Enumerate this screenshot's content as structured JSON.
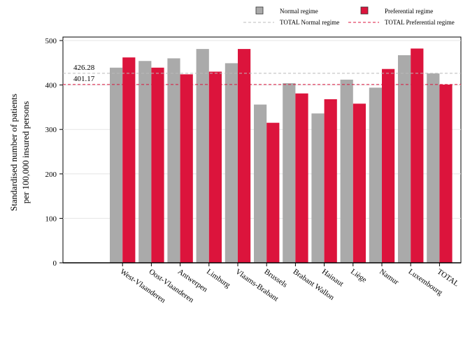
{
  "chart_data": {
    "type": "bar",
    "title": "",
    "xlabel": "",
    "ylabel_lines": [
      "Standardised number of patients",
      "per 100,000 insured persons"
    ],
    "ylim": [
      0,
      500
    ],
    "yticks": [
      0,
      100,
      200,
      300,
      400,
      500
    ],
    "grid": true,
    "legend_position": "top-right",
    "categories": [
      "West-Vlaanderen",
      "Oost-Vlaanderen",
      "Antwerpen",
      "Limburg",
      "Vlaams-Brabant",
      "Brussels",
      "Brabant Wallon",
      "Hainaut",
      "Liège",
      "Namur",
      "Luxembourg",
      "TOTAL"
    ],
    "series": [
      {
        "name": "Normal regime",
        "color": "#aaaaaa",
        "values": [
          439,
          454,
          460,
          481,
          449,
          356,
          404,
          336,
          412,
          394,
          467,
          426
        ]
      },
      {
        "name": "Preferential regime",
        "color": "#dc143c",
        "values": [
          462,
          439,
          424,
          430,
          481,
          315,
          381,
          368,
          358,
          436,
          482,
          401
        ]
      }
    ],
    "reference_lines": [
      {
        "name": "TOTAL Normal regime",
        "value": 426.28,
        "label": "426.28",
        "color": "#bbbbbb"
      },
      {
        "name": "TOTAL Preferential regime",
        "value": 401.17,
        "label": "401.17",
        "color": "#dc143c"
      }
    ]
  }
}
